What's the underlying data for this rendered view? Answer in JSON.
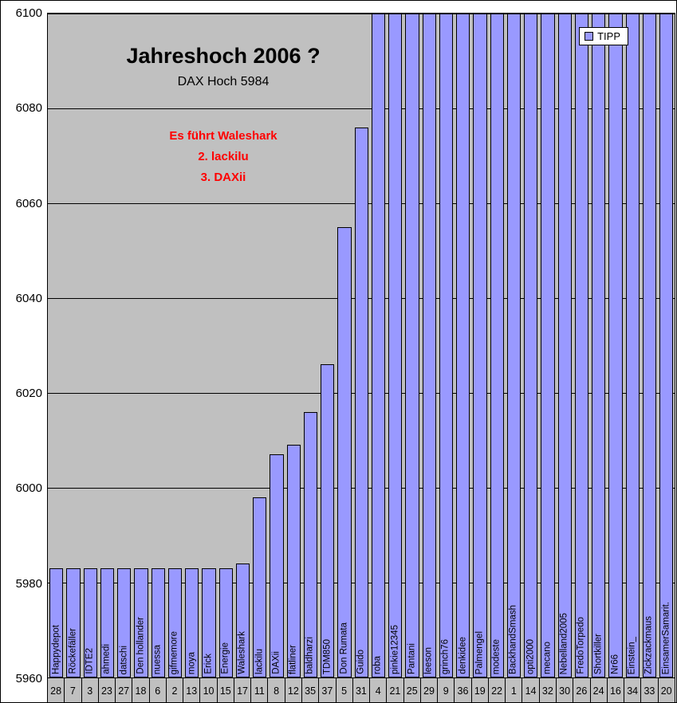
{
  "chart_data": {
    "type": "bar",
    "title": "Jahreshoch 2006 ?",
    "subtitle": "DAX Hoch 5984",
    "annotations": [
      "Es führt Waleshark",
      "2. lackilu",
      "3. DAXii"
    ],
    "legend": [
      "TIPP"
    ],
    "legend_position": "top-right",
    "ylim": [
      5960,
      6100
    ],
    "yticks": [
      6100,
      6080,
      6060,
      6040,
      6020,
      6000,
      5980,
      5960
    ],
    "grid": true,
    "bar_color": "#9999ff",
    "plot_bg": "#c0c0c0",
    "categories": [
      "Happydepot",
      "Röckefäller",
      "IDTE2",
      "ahmedi",
      "datschi",
      "Den hollander",
      "nuessa",
      "gifmemore",
      "moya",
      "Erick",
      "Energie",
      "Waleshark",
      "lackilu",
      "DAXii",
      "flatliner",
      "baldharzi",
      "TDM850",
      "Don Rumata",
      "Guido",
      "roba",
      "pinkie12345",
      "Pantani",
      "leeson",
      "grinch76",
      "denkidee",
      "Palmengel",
      "modeste",
      "BackhandSmash",
      "opti2000",
      "mecano",
      "Nebelland2005",
      "FredoTorpedo",
      "Shortkiller",
      "Nr66",
      "Einstein_",
      "Zickzackmaus",
      "EinsamerSamarit."
    ],
    "values": [
      5983,
      5983,
      5983,
      5983,
      5983,
      5983,
      5983,
      5983,
      5983,
      5983,
      5983,
      5984,
      5998,
      6007,
      6009,
      6016,
      6026,
      6055,
      6076,
      6100,
      6100,
      6100,
      6100,
      6100,
      6100,
      6100,
      6100,
      6100,
      6100,
      6100,
      6100,
      6100,
      6100,
      6100,
      6100,
      6100,
      6100
    ],
    "rank_row": [
      "28",
      "7",
      "3",
      "23",
      "27",
      "18",
      "6",
      "2",
      "13",
      "10",
      "15",
      "17",
      "11",
      "8",
      "12",
      "35",
      "37",
      "5",
      "31",
      "4",
      "21",
      "25",
      "29",
      "9",
      "36",
      "19",
      "22",
      "1",
      "14",
      "32",
      "30",
      "26",
      "24",
      "16",
      "34",
      "33",
      "20"
    ]
  }
}
